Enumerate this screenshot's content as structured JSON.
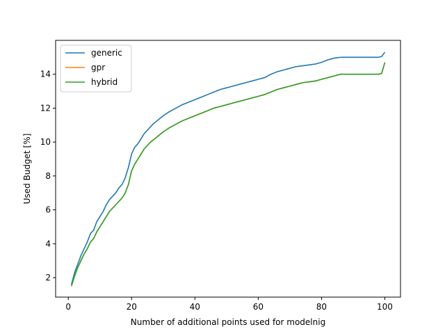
{
  "chart_data": {
    "type": "line",
    "title": "",
    "xlabel": "Number of additional points used for modelnig",
    "ylabel": "Used Budget [%]",
    "xlim": [
      -4.0,
      104.95
    ],
    "ylim": [
      0.85,
      16.0
    ],
    "xticks": [
      0,
      20,
      40,
      60,
      80,
      100
    ],
    "yticks": [
      2,
      4,
      6,
      8,
      10,
      12,
      14
    ],
    "grid": false,
    "legend_position": "top-left",
    "series": [
      {
        "name": "generic",
        "color": "#1f77b4",
        "x": [
          1,
          2,
          3,
          4,
          5,
          6,
          7,
          8,
          9,
          10,
          11,
          12,
          13,
          14,
          15,
          16,
          17,
          18,
          19,
          20,
          21,
          22,
          23,
          24,
          25,
          26,
          27,
          28,
          29,
          30,
          32,
          34,
          36,
          38,
          40,
          42,
          44,
          46,
          48,
          50,
          52,
          54,
          56,
          58,
          60,
          62,
          64,
          66,
          68,
          70,
          72,
          74,
          76,
          78,
          80,
          82,
          84,
          86,
          88,
          90,
          92,
          94,
          96,
          98,
          99,
          100
        ],
        "y": [
          1.6,
          2.3,
          2.8,
          3.3,
          3.7,
          4.1,
          4.6,
          4.8,
          5.3,
          5.6,
          5.9,
          6.3,
          6.6,
          6.8,
          7.0,
          7.3,
          7.5,
          7.9,
          8.5,
          9.3,
          9.7,
          9.9,
          10.2,
          10.5,
          10.7,
          10.9,
          11.1,
          11.25,
          11.4,
          11.55,
          11.8,
          12.0,
          12.2,
          12.35,
          12.5,
          12.65,
          12.8,
          12.95,
          13.1,
          13.2,
          13.3,
          13.4,
          13.5,
          13.6,
          13.7,
          13.8,
          14.0,
          14.15,
          14.25,
          14.35,
          14.45,
          14.5,
          14.55,
          14.6,
          14.7,
          14.85,
          14.95,
          15.0,
          15.0,
          15.0,
          15.0,
          15.0,
          15.0,
          15.0,
          15.05,
          15.3
        ]
      },
      {
        "name": "gpr",
        "color": "#ff7f0e",
        "x": [
          1,
          2,
          3,
          4,
          5,
          6,
          7,
          8,
          9,
          10,
          11,
          12,
          13,
          14,
          15,
          16,
          17,
          18,
          19,
          20,
          21,
          22,
          23,
          24,
          25,
          26,
          27,
          28,
          29,
          30,
          32,
          34,
          36,
          38,
          40,
          42,
          44,
          46,
          48,
          50,
          52,
          54,
          56,
          58,
          60,
          62,
          64,
          66,
          68,
          70,
          72,
          74,
          76,
          78,
          80,
          82,
          84,
          86,
          88,
          90,
          92,
          94,
          96,
          98,
          99,
          100
        ],
        "y": [
          1.5,
          2.1,
          2.6,
          3.0,
          3.4,
          3.7,
          4.1,
          4.3,
          4.7,
          5.0,
          5.3,
          5.6,
          5.9,
          6.1,
          6.3,
          6.5,
          6.7,
          7.0,
          7.5,
          8.3,
          8.7,
          9.0,
          9.3,
          9.6,
          9.8,
          10.0,
          10.15,
          10.3,
          10.45,
          10.6,
          10.85,
          11.05,
          11.25,
          11.4,
          11.55,
          11.7,
          11.85,
          12.0,
          12.1,
          12.2,
          12.3,
          12.4,
          12.5,
          12.6,
          12.7,
          12.8,
          12.95,
          13.1,
          13.2,
          13.3,
          13.4,
          13.5,
          13.55,
          13.6,
          13.7,
          13.8,
          13.9,
          14.0,
          14.0,
          14.0,
          14.0,
          14.0,
          14.0,
          14.0,
          14.05,
          14.7
        ]
      },
      {
        "name": "hybrid",
        "color": "#2ca02c",
        "x": [
          1,
          2,
          3,
          4,
          5,
          6,
          7,
          8,
          9,
          10,
          11,
          12,
          13,
          14,
          15,
          16,
          17,
          18,
          19,
          20,
          21,
          22,
          23,
          24,
          25,
          26,
          27,
          28,
          29,
          30,
          32,
          34,
          36,
          38,
          40,
          42,
          44,
          46,
          48,
          50,
          52,
          54,
          56,
          58,
          60,
          62,
          64,
          66,
          68,
          70,
          72,
          74,
          76,
          78,
          80,
          82,
          84,
          86,
          88,
          90,
          92,
          94,
          96,
          98,
          99,
          100
        ],
        "y": [
          1.5,
          2.1,
          2.6,
          3.0,
          3.4,
          3.7,
          4.1,
          4.3,
          4.7,
          5.0,
          5.3,
          5.6,
          5.9,
          6.1,
          6.3,
          6.5,
          6.7,
          7.0,
          7.5,
          8.3,
          8.7,
          9.0,
          9.3,
          9.6,
          9.8,
          10.0,
          10.15,
          10.3,
          10.45,
          10.6,
          10.85,
          11.05,
          11.25,
          11.4,
          11.55,
          11.7,
          11.85,
          12.0,
          12.1,
          12.2,
          12.3,
          12.4,
          12.5,
          12.6,
          12.7,
          12.8,
          12.95,
          13.1,
          13.2,
          13.3,
          13.4,
          13.5,
          13.55,
          13.6,
          13.7,
          13.8,
          13.9,
          14.0,
          14.0,
          14.0,
          14.0,
          14.0,
          14.0,
          14.0,
          14.05,
          14.7
        ]
      }
    ]
  }
}
